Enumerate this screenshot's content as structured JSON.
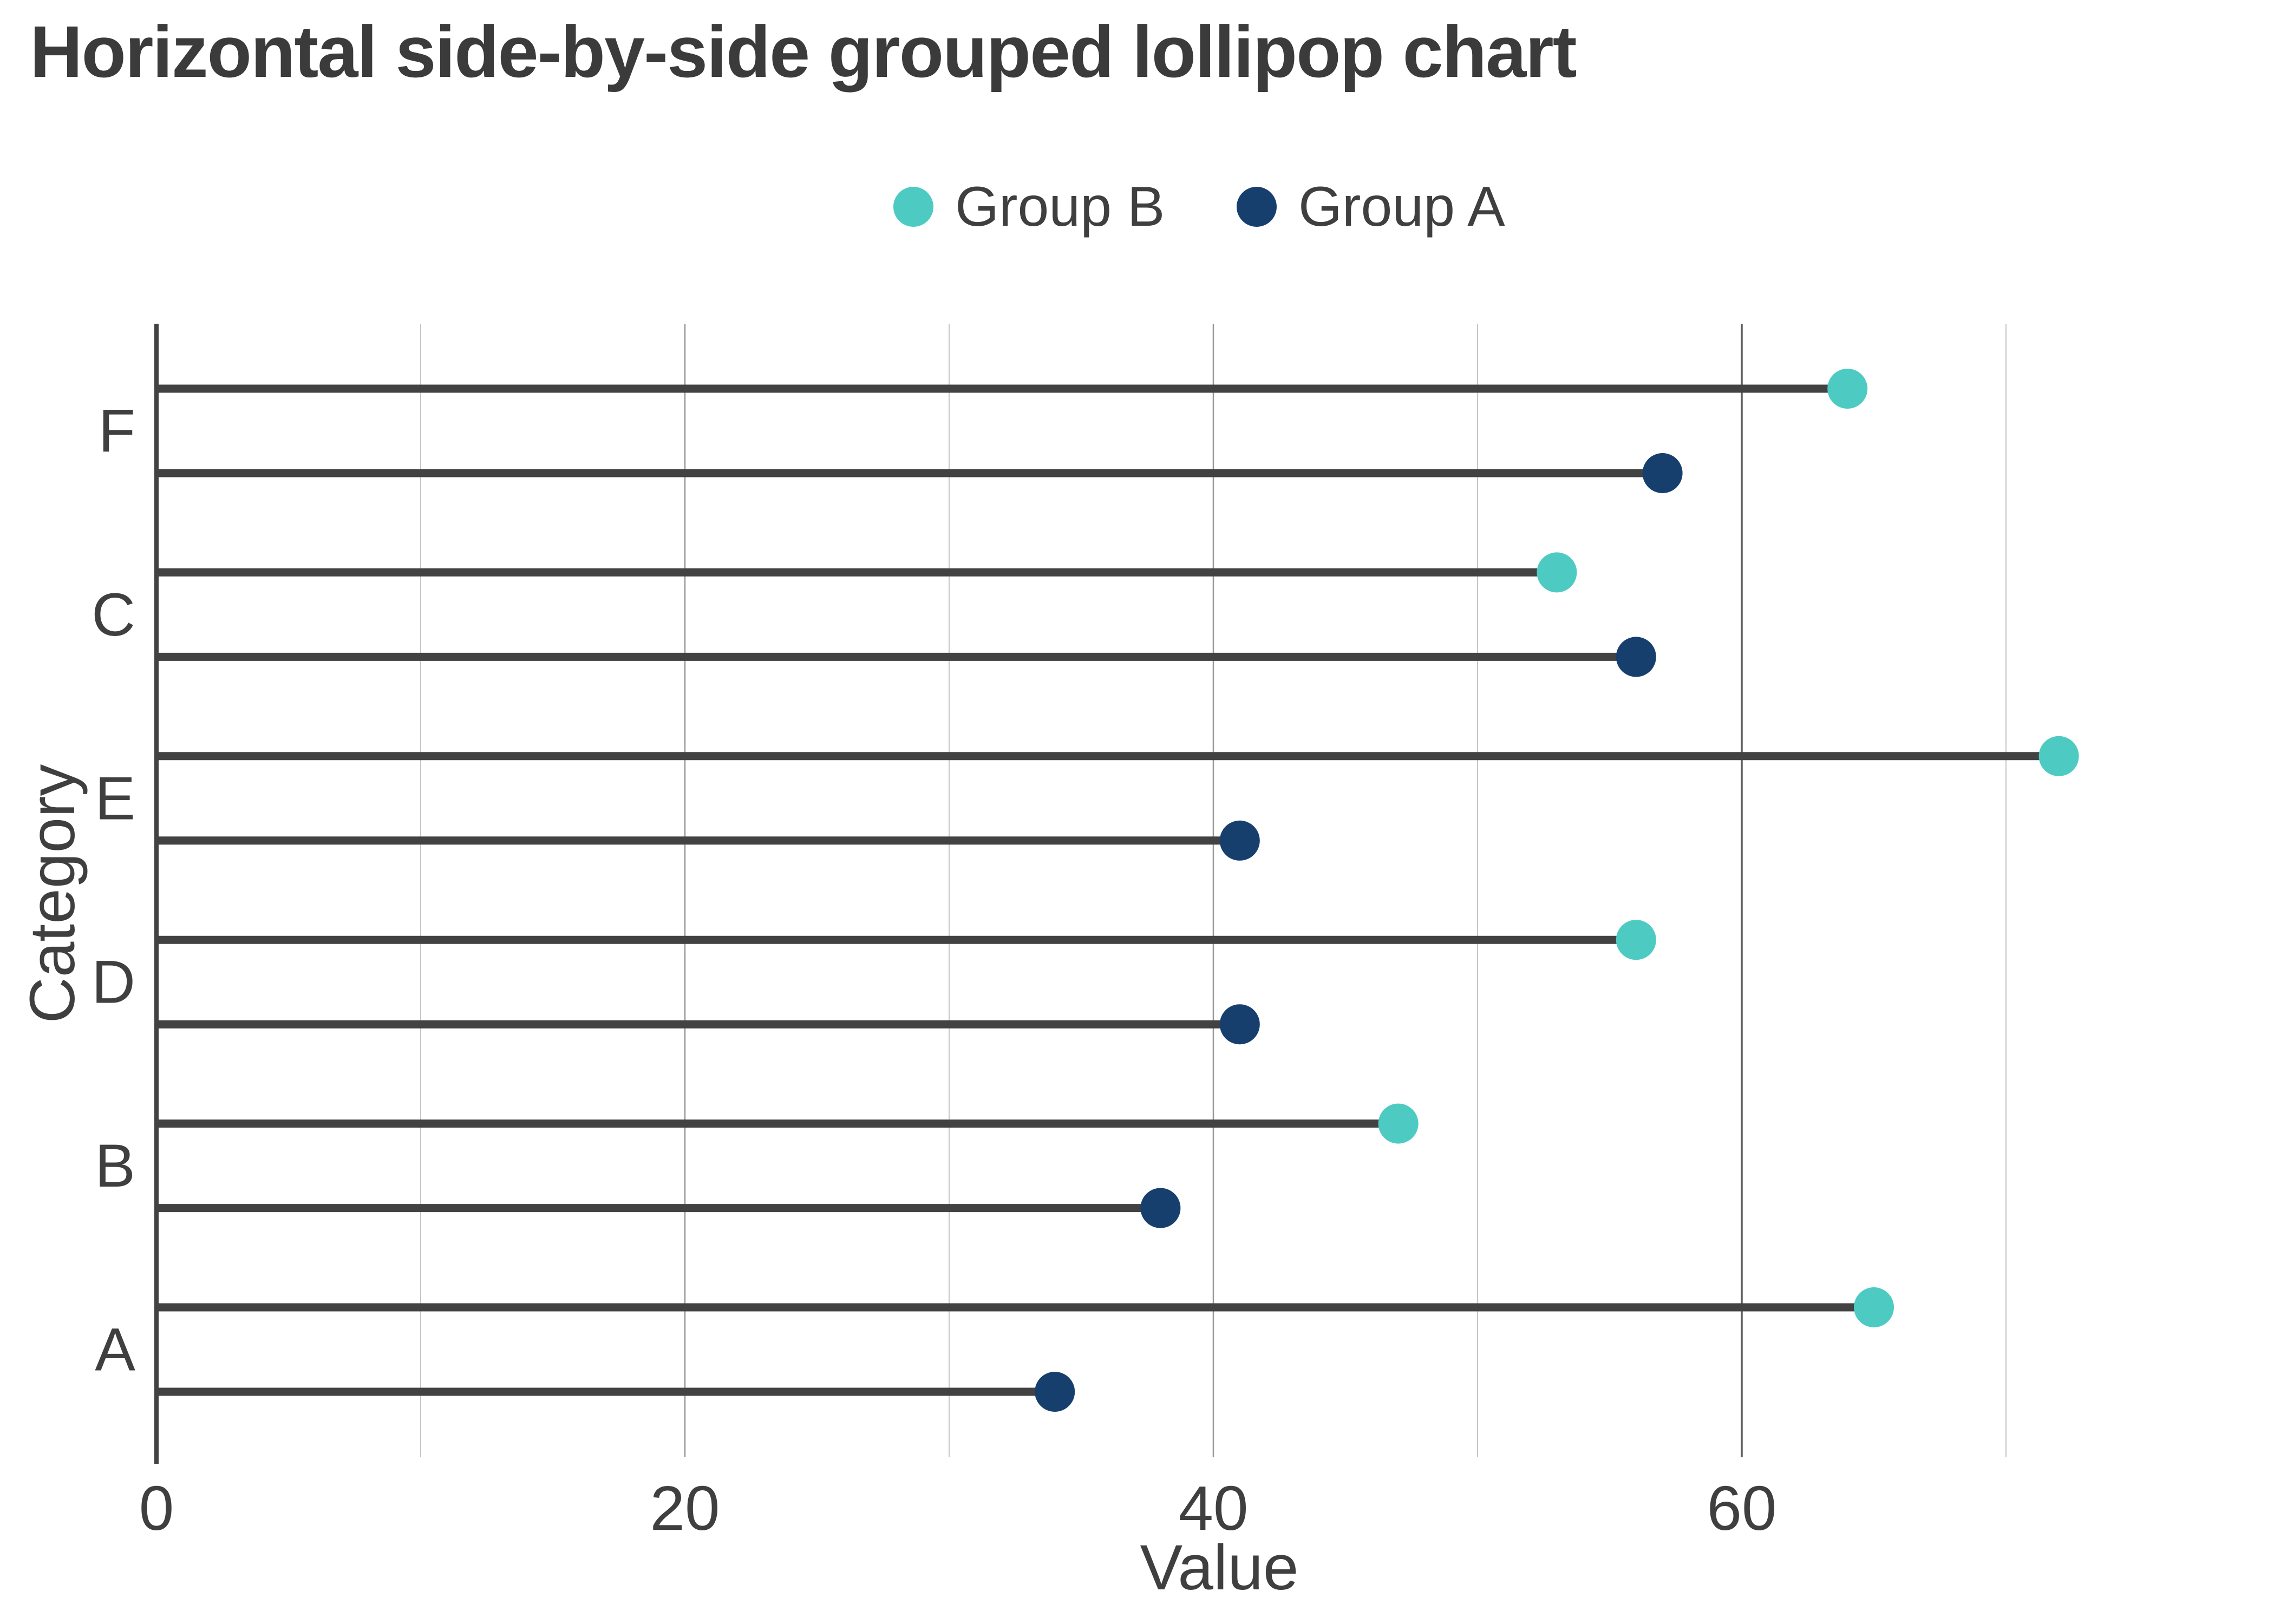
{
  "title": "Horizontal side-by-side grouped lollipop chart",
  "legend": {
    "items": [
      {
        "label": "Group B",
        "color": "#4DCBC2"
      },
      {
        "label": "Group A",
        "color": "#173F6D"
      }
    ]
  },
  "chart_data": {
    "type": "lollipop",
    "orientation": "horizontal-grouped",
    "title": "Horizontal side-by-side grouped lollipop chart",
    "categories_top_to_bottom": [
      "F",
      "C",
      "E",
      "D",
      "B",
      "A"
    ],
    "series": [
      {
        "name": "Group B",
        "color": "#4DCBC2",
        "row_in_pair": "top",
        "values": [
          64,
          53,
          72,
          56,
          47,
          65
        ]
      },
      {
        "name": "Group A",
        "color": "#173F6D",
        "row_in_pair": "bottom",
        "values": [
          57,
          56,
          41,
          41,
          38,
          34
        ]
      }
    ],
    "xlabel": "Value",
    "ylabel": "Category",
    "x_ticks": [
      0,
      20,
      40,
      60
    ],
    "x_gridlines": {
      "minor": [
        10,
        30,
        50,
        70
      ],
      "major": [
        20,
        40
      ],
      "strong": [
        60
      ]
    },
    "xlim": [
      0,
      80
    ],
    "legend_position": "top-center",
    "grid": "vertical-only"
  },
  "colors": {
    "stem": "#424242",
    "axis_spine": "#424242",
    "text": "#3f3f3f",
    "grid_minor": "#c6c6c6",
    "grid_major": "#989898",
    "grid_strong": "#5e5e5e",
    "background": "#ffffff"
  }
}
